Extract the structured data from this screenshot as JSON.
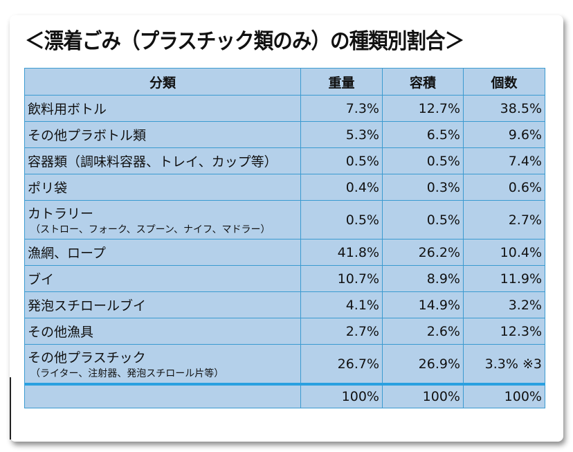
{
  "title": "＜漂着ごみ（プラスチック類のみ）の種類別割合＞",
  "headers": [
    "分類",
    "重量",
    "容積",
    "個数"
  ],
  "rows": [
    {
      "name": "飲料用ボトル",
      "sub": "",
      "weight": "7.3%",
      "volume": "12.7%",
      "count": "38.5%"
    },
    {
      "name": "その他プラボトル類",
      "sub": "",
      "weight": "5.3%",
      "volume": "6.5%",
      "count": "9.6%"
    },
    {
      "name": "容器類（調味料容器、トレイ、カップ等）",
      "sub": "",
      "weight": "0.5%",
      "volume": "0.5%",
      "count": "7.4%"
    },
    {
      "name": "ポリ袋",
      "sub": "",
      "weight": "0.4%",
      "volume": "0.3%",
      "count": "0.6%"
    },
    {
      "name": "カトラリー",
      "sub": "（ストロー、フォーク、スプーン、ナイフ、マドラー）",
      "weight": "0.5%",
      "volume": "0.5%",
      "count": "2.7%"
    },
    {
      "name": "漁網、ロープ",
      "sub": "",
      "weight": "41.8%",
      "volume": "26.2%",
      "count": "10.4%"
    },
    {
      "name": "ブイ",
      "sub": "",
      "weight": "10.7%",
      "volume": "8.9%",
      "count": "11.9%"
    },
    {
      "name": "発泡スチロールブイ",
      "sub": "",
      "weight": "4.1%",
      "volume": "14.9%",
      "count": "3.2%"
    },
    {
      "name": "その他漁具",
      "sub": "",
      "weight": "2.7%",
      "volume": "2.6%",
      "count": "12.3%"
    },
    {
      "name": "その他プラスチック",
      "sub": "（ライター、注射器、発泡スチロール片等）",
      "weight": "26.7%",
      "volume": "26.9%",
      "count": "3.3% ※3"
    }
  ],
  "total": {
    "weight": "100%",
    "volume": "100%",
    "count": "100%"
  }
}
